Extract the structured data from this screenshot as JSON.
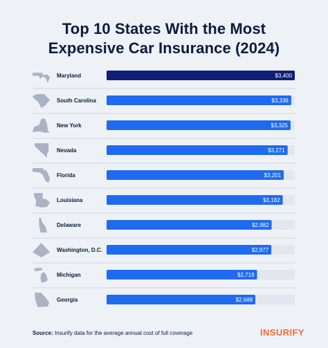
{
  "title_line1": "Top 10 States With the Most",
  "title_line2": "Expensive Car Insurance (2024)",
  "source_label": "Source:",
  "source_text": "Insurify data for the average annual cost of full coverage",
  "brand": "INSURIFY",
  "colors": {
    "top_bar": "#0d1f78",
    "bar": "#1f6bf0",
    "track": "#e2e7ef",
    "divider": "#c6ccd8",
    "state_shape": "#a9b3c4"
  },
  "chart_data": {
    "type": "bar",
    "orientation": "horizontal",
    "title": "Top 10 States With the Most Expensive Car Insurance (2024)",
    "categories": [
      "Maryland",
      "South Carolina",
      "New York",
      "Nevada",
      "Florida",
      "Louisiana",
      "Delaware",
      "Washington, D.C.",
      "Michigan",
      "Georgia"
    ],
    "values": [
      3400,
      3336,
      3325,
      3271,
      3201,
      3182,
      2982,
      2977,
      2719,
      2688
    ],
    "value_labels": [
      "$3,400",
      "$3,336",
      "$3,325",
      "$3,271",
      "$3,201",
      "$3,182",
      "$2,982",
      "$2,977",
      "$2,719",
      "$2,688"
    ],
    "icons": [
      "maryland-icon",
      "south-carolina-icon",
      "new-york-icon",
      "nevada-icon",
      "florida-icon",
      "louisiana-icon",
      "delaware-icon",
      "washington-dc-icon",
      "michigan-icon",
      "georgia-icon"
    ],
    "xlim": [
      0,
      3400
    ],
    "grid": false,
    "legend": "none"
  }
}
